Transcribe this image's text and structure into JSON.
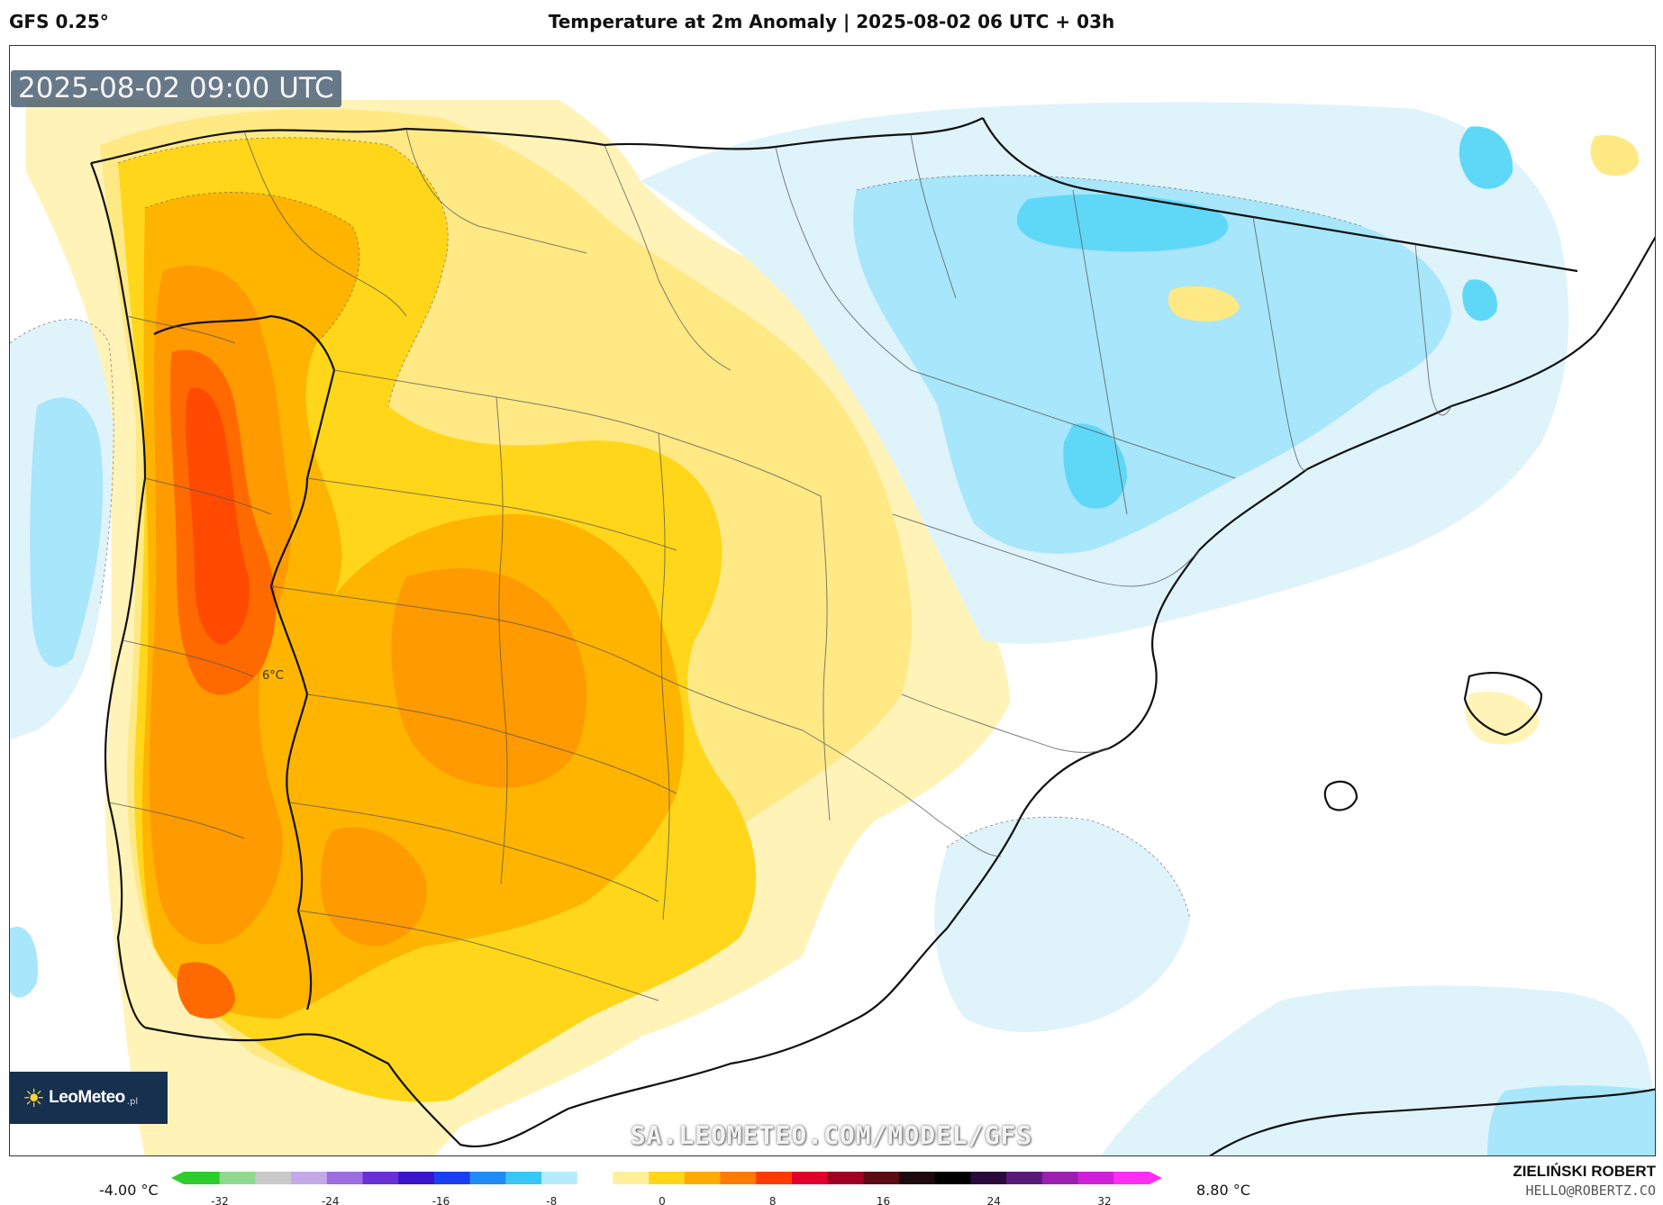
{
  "header": {
    "model": "GFS 0.25°",
    "title": "Temperature at 2m Anomaly | 2025-08-02 06 UTC + 03h"
  },
  "map": {
    "valid_time": "2025-08-02 09:00 UTC",
    "inline_label": "6°C",
    "watermark": "SA.LEOMETEO.COM/MODEL/GFS",
    "region_shown": "Iberian Peninsula and Balearic Islands",
    "colors": {
      "cold_strong": "#5fd8f8",
      "cold": "#a7e6fb",
      "cool": "#dff3fb",
      "neutral": "#ffffff",
      "warm_pale": "#fff3b8",
      "warm_light": "#ffe985",
      "warm": "#ffd61a",
      "hot": "#ffb400",
      "hotter": "#ff9a00",
      "hottest": "#ff6a00",
      "extreme": "#ff4a00"
    }
  },
  "logo": {
    "brand": "LeoMeteo",
    "tld": ".pl",
    "icon": "sun-icon"
  },
  "legend": {
    "min_label": "-4.00 °C",
    "max_label": "8.80 °C",
    "ticks": [
      "-32",
      "-24",
      "-16",
      "-8",
      "0",
      "8",
      "16",
      "24",
      "32"
    ],
    "colors": [
      "#2ecc2e",
      "#8fd98f",
      "#c9c9c9",
      "#c4a9e8",
      "#9c6ee0",
      "#6a2fd6",
      "#3a14c8",
      "#1a3ff0",
      "#1f8cf5",
      "#38c6f5",
      "#b5ecfb",
      "#ffffff",
      "#ffef9a",
      "#ffd61a",
      "#ffac00",
      "#ff7a00",
      "#ff3a00",
      "#e0002a",
      "#a00022",
      "#5c0a14",
      "#1e0a0e",
      "#000000",
      "#2a0a3a",
      "#5a1a7a",
      "#9a20b0",
      "#d020d8",
      "#ff2ef5"
    ]
  },
  "author": {
    "name": "ZIELIŃSKI ROBERT",
    "email": "HELLO@ROBERTZ.CO"
  }
}
